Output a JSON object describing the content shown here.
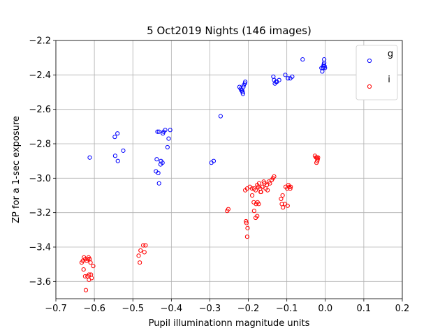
{
  "chart_data": {
    "type": "scatter",
    "title": "5 Oct2019 Nights (146 images)",
    "xlabel": "Pupil illuminationn magnitude units",
    "ylabel": "ZP for a 1-sec exposure",
    "xlim": [
      -0.7,
      0.2
    ],
    "ylim": [
      -3.7,
      -2.2
    ],
    "xticks": [
      -0.7,
      -0.6,
      -0.5,
      -0.4,
      -0.3,
      -0.2,
      -0.1,
      0.0,
      0.1,
      0.2
    ],
    "xtick_labels": [
      "−0.7",
      "−0.6",
      "−0.5",
      "−0.4",
      "−0.3",
      "−0.2",
      "−0.1",
      "0.0",
      "0.1",
      "0.2"
    ],
    "yticks": [
      -2.2,
      -2.4,
      -2.6,
      -2.8,
      -3.0,
      -3.2,
      -3.4,
      -3.6
    ],
    "ytick_labels": [
      "−2.2",
      "−2.4",
      "−2.6",
      "−2.8",
      "−3.0",
      "−3.2",
      "−3.4",
      "−3.6"
    ],
    "grid": true,
    "legend_position": "top-right",
    "series": [
      {
        "name": "g",
        "color": "#0000ff",
        "marker": "open-circle",
        "points": [
          [
            -0.612,
            -2.88
          ],
          [
            -0.547,
            -2.76
          ],
          [
            -0.54,
            -2.74
          ],
          [
            -0.546,
            -2.87
          ],
          [
            -0.539,
            -2.9
          ],
          [
            -0.525,
            -2.84
          ],
          [
            -0.436,
            -2.73
          ],
          [
            -0.432,
            -2.73
          ],
          [
            -0.422,
            -2.74
          ],
          [
            -0.42,
            -2.73
          ],
          [
            -0.416,
            -2.72
          ],
          [
            -0.403,
            -2.72
          ],
          [
            -0.407,
            -2.77
          ],
          [
            -0.41,
            -2.82
          ],
          [
            -0.438,
            -2.89
          ],
          [
            -0.427,
            -2.9
          ],
          [
            -0.423,
            -2.91
          ],
          [
            -0.428,
            -2.92
          ],
          [
            -0.44,
            -2.96
          ],
          [
            -0.434,
            -2.97
          ],
          [
            -0.432,
            -3.03
          ],
          [
            -0.296,
            -2.91
          ],
          [
            -0.29,
            -2.9
          ],
          [
            -0.272,
            -2.64
          ],
          [
            -0.223,
            -2.47
          ],
          [
            -0.22,
            -2.48
          ],
          [
            -0.218,
            -2.49
          ],
          [
            -0.215,
            -2.5
          ],
          [
            -0.213,
            -2.47
          ],
          [
            -0.212,
            -2.46
          ],
          [
            -0.209,
            -2.45
          ],
          [
            -0.208,
            -2.44
          ],
          [
            -0.214,
            -2.51
          ],
          [
            -0.216,
            -2.49
          ],
          [
            -0.135,
            -2.41
          ],
          [
            -0.133,
            -2.43
          ],
          [
            -0.131,
            -2.45
          ],
          [
            -0.128,
            -2.44
          ],
          [
            -0.126,
            -2.44
          ],
          [
            -0.12,
            -2.43
          ],
          [
            -0.104,
            -2.4
          ],
          [
            -0.097,
            -2.42
          ],
          [
            -0.091,
            -2.42
          ],
          [
            -0.086,
            -2.41
          ],
          [
            -0.059,
            -2.31
          ],
          [
            -0.01,
            -2.36
          ],
          [
            -0.008,
            -2.38
          ],
          [
            -0.006,
            -2.36
          ],
          [
            -0.005,
            -2.35
          ],
          [
            -0.004,
            -2.34
          ],
          [
            -0.003,
            -2.33
          ],
          [
            -0.003,
            -2.31
          ],
          [
            -0.002,
            -2.35
          ],
          [
            -0.001,
            -2.36
          ]
        ]
      },
      {
        "name": "i",
        "color": "#ff0000",
        "marker": "open-circle",
        "points": [
          [
            -0.633,
            -3.49
          ],
          [
            -0.63,
            -3.48
          ],
          [
            -0.627,
            -3.46
          ],
          [
            -0.624,
            -3.47
          ],
          [
            -0.62,
            -3.48
          ],
          [
            -0.616,
            -3.47
          ],
          [
            -0.612,
            -3.47
          ],
          [
            -0.61,
            -3.49
          ],
          [
            -0.615,
            -3.46
          ],
          [
            -0.603,
            -3.51
          ],
          [
            -0.628,
            -3.53
          ],
          [
            -0.624,
            -3.57
          ],
          [
            -0.618,
            -3.57
          ],
          [
            -0.614,
            -3.56
          ],
          [
            -0.609,
            -3.56
          ],
          [
            -0.607,
            -3.58
          ],
          [
            -0.614,
            -3.59
          ],
          [
            -0.622,
            -3.65
          ],
          [
            -0.485,
            -3.45
          ],
          [
            -0.48,
            -3.42
          ],
          [
            -0.473,
            -3.39
          ],
          [
            -0.467,
            -3.39
          ],
          [
            -0.47,
            -3.43
          ],
          [
            -0.482,
            -3.49
          ],
          [
            -0.255,
            -3.19
          ],
          [
            -0.252,
            -3.18
          ],
          [
            -0.208,
            -3.07
          ],
          [
            -0.203,
            -3.06
          ],
          [
            -0.196,
            -3.05
          ],
          [
            -0.19,
            -3.06
          ],
          [
            -0.185,
            -3.06
          ],
          [
            -0.181,
            -3.07
          ],
          [
            -0.177,
            -3.04
          ],
          [
            -0.174,
            -3.05
          ],
          [
            -0.172,
            -3.03
          ],
          [
            -0.169,
            -3.06
          ],
          [
            -0.167,
            -3.08
          ],
          [
            -0.164,
            -3.05
          ],
          [
            -0.16,
            -3.02
          ],
          [
            -0.158,
            -3.03
          ],
          [
            -0.155,
            -3.06
          ],
          [
            -0.152,
            -3.04
          ],
          [
            -0.15,
            -3.07
          ],
          [
            -0.147,
            -3.02
          ],
          [
            -0.144,
            -3.03
          ],
          [
            -0.139,
            -3.01
          ],
          [
            -0.136,
            -3.0
          ],
          [
            -0.133,
            -2.99
          ],
          [
            -0.19,
            -3.1
          ],
          [
            -0.186,
            -3.14
          ],
          [
            -0.18,
            -3.15
          ],
          [
            -0.176,
            -3.14
          ],
          [
            -0.173,
            -3.15
          ],
          [
            -0.168,
            -3.08
          ],
          [
            -0.185,
            -3.19
          ],
          [
            -0.181,
            -3.23
          ],
          [
            -0.177,
            -3.22
          ],
          [
            -0.206,
            -3.25
          ],
          [
            -0.205,
            -3.26
          ],
          [
            -0.202,
            -3.29
          ],
          [
            -0.203,
            -3.34
          ],
          [
            -0.115,
            -3.12
          ],
          [
            -0.111,
            -3.1
          ],
          [
            -0.113,
            -3.15
          ],
          [
            -0.11,
            -3.17
          ],
          [
            -0.105,
            -3.15
          ],
          [
            -0.098,
            -3.16
          ],
          [
            -0.103,
            -3.05
          ],
          [
            -0.099,
            -3.06
          ],
          [
            -0.096,
            -3.04
          ],
          [
            -0.094,
            -3.05
          ],
          [
            -0.091,
            -3.06
          ],
          [
            -0.09,
            -3.05
          ],
          [
            -0.027,
            -2.87
          ],
          [
            -0.024,
            -2.88
          ],
          [
            -0.022,
            -2.88
          ],
          [
            -0.02,
            -2.89
          ],
          [
            -0.019,
            -2.88
          ],
          [
            -0.021,
            -2.9
          ],
          [
            -0.023,
            -2.91
          ]
        ]
      }
    ]
  }
}
